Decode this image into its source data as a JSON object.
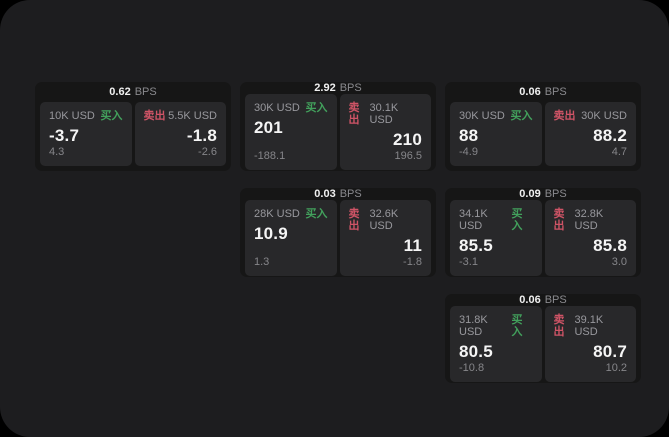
{
  "window": {
    "background": "#1d1d1f",
    "outer_background": "#000000"
  },
  "colors": {
    "card_background": "#161616",
    "panel_background": "#28282a",
    "buy_green": "#42a05c",
    "sell_red": "#cf5466",
    "primary_text": "#f5f5f5",
    "muted_text": "#98989d"
  },
  "cards": [
    {
      "bps_value": "0.62",
      "bps_label": "BPS",
      "buy": {
        "amount": "10K USD",
        "side_label": "买入",
        "price": "-3.7",
        "delta": "4.3"
      },
      "sell": {
        "amount": "5.5K USD",
        "side_label": "卖出",
        "price": "-1.8",
        "delta": "-2.6"
      }
    },
    {
      "bps_value": "2.92",
      "bps_label": "BPS",
      "buy": {
        "amount": "30K USD",
        "side_label": "买入",
        "price": "201",
        "delta": "-188.1"
      },
      "sell": {
        "amount": "30.1K USD",
        "side_label": "卖出",
        "price": "210",
        "delta": "196.5"
      }
    },
    {
      "bps_value": "0.06",
      "bps_label": "BPS",
      "buy": {
        "amount": "30K USD",
        "side_label": "买入",
        "price": "88",
        "delta": "-4.9"
      },
      "sell": {
        "amount": "30K USD",
        "side_label": "卖出",
        "price": "88.2",
        "delta": "4.7"
      }
    },
    {
      "bps_value": "0.03",
      "bps_label": "BPS",
      "buy": {
        "amount": "28K USD",
        "side_label": "买入",
        "price": "10.9",
        "delta": "1.3"
      },
      "sell": {
        "amount": "32.6K USD",
        "side_label": "卖出",
        "price": "11",
        "delta": "-1.8"
      }
    },
    {
      "bps_value": "0.09",
      "bps_label": "BPS",
      "buy": {
        "amount": "34.1K USD",
        "side_label": "买入",
        "price": "85.5",
        "delta": "-3.1"
      },
      "sell": {
        "amount": "32.8K USD",
        "side_label": "卖出",
        "price": "85.8",
        "delta": "3.0"
      }
    },
    {
      "bps_value": "0.06",
      "bps_label": "BPS",
      "buy": {
        "amount": "31.8K USD",
        "side_label": "买入",
        "price": "80.5",
        "delta": "-10.8"
      },
      "sell": {
        "amount": "39.1K USD",
        "side_label": "卖出",
        "price": "80.7",
        "delta": "10.2"
      }
    }
  ]
}
